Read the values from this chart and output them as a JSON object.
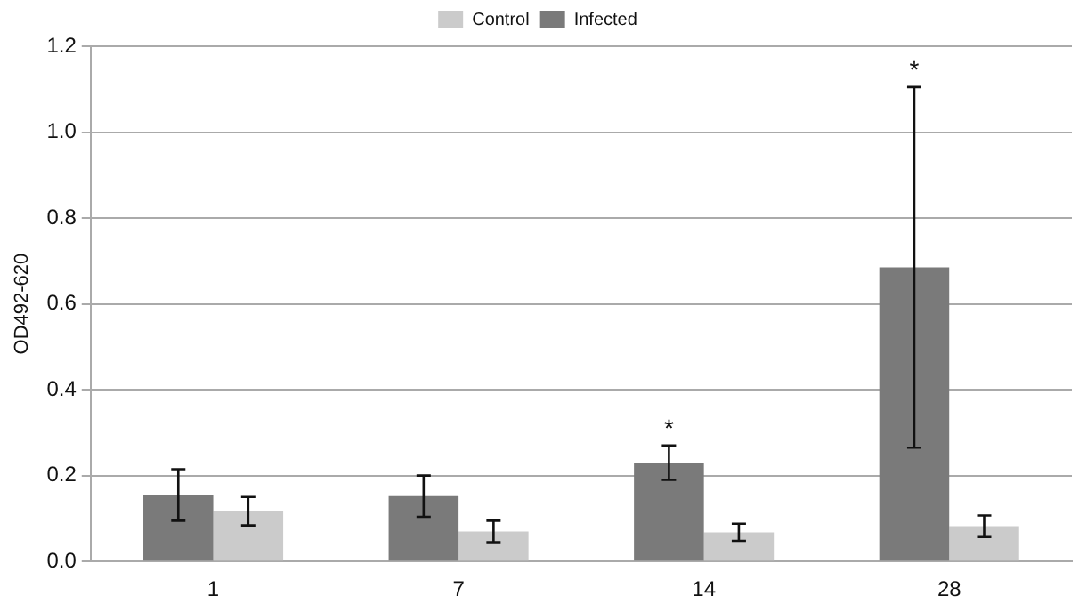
{
  "chart_data": {
    "type": "bar",
    "ylabel": "OD492-620",
    "categories": [
      "1",
      "7",
      "14",
      "28"
    ],
    "series": [
      {
        "name": "Infected",
        "color": "#7a7a7a",
        "values": [
          0.155,
          0.152,
          0.23,
          0.685
        ],
        "errors": [
          0.06,
          0.048,
          0.04,
          0.42
        ]
      },
      {
        "name": "Control",
        "color": "#cbcbcb",
        "values": [
          0.117,
          0.07,
          0.068,
          0.082
        ],
        "errors": [
          0.033,
          0.025,
          0.02,
          0.025
        ]
      }
    ],
    "annotations": [
      {
        "text": "*",
        "x": "14",
        "y": 0.23
      },
      "*"
    ],
    "ylim": [
      0,
      1.2
    ],
    "yticks": [
      {
        "value": 0,
        "label": "0.0"
      },
      {
        "value": 0.2,
        "label": "0.2"
      },
      {
        "value": 0.4,
        "label": "0.4"
      },
      {
        "value": 0.6,
        "label": "0.6"
      },
      {
        "value": 0.8,
        "label": "0.8"
      },
      {
        "value": 1.0,
        "label": "1.0"
      },
      {
        "value": 1.2,
        "label": "1.2"
      }
    ],
    "grid": "y",
    "legend": "top"
  }
}
